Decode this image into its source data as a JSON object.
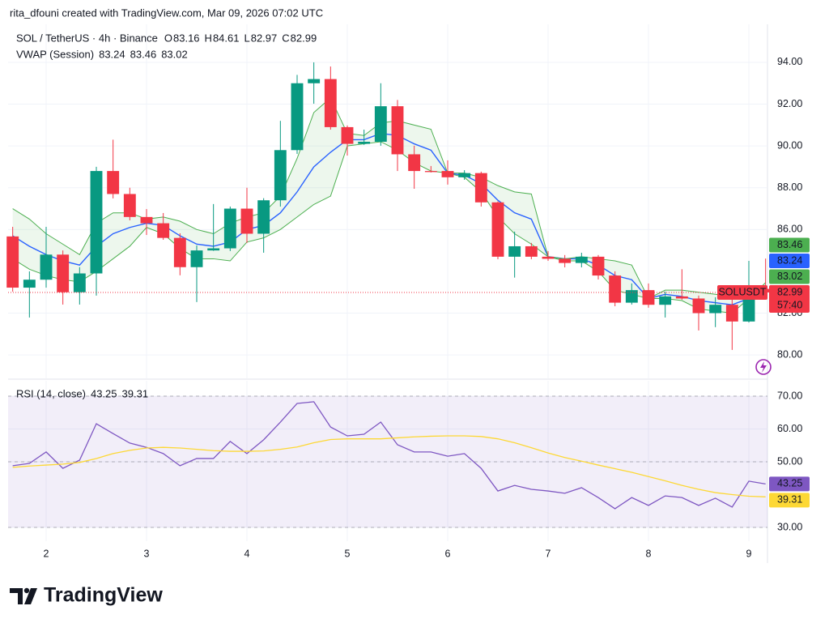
{
  "header": {
    "credit": "rita_dfouni created with TradingView.com, Mar 09, 2026 07:02 UTC"
  },
  "footer": {
    "brand": "TradingView"
  },
  "chart_data": [
    {
      "type": "candlestick",
      "title": "SOL / TetherUS · 4h · Binance",
      "ohlc_labels": [
        "O",
        "H",
        "L",
        "C"
      ],
      "up_color": "#089981",
      "down_color": "#f23645",
      "open": [
        85.67,
        83.22,
        83.6,
        84.8,
        83.0,
        83.9,
        88.8,
        87.7,
        86.6,
        86.3,
        85.6,
        84.2,
        85.0,
        85.1,
        87.0,
        85.8,
        87.4,
        89.8,
        93.0,
        93.2,
        90.9,
        90.1,
        90.2,
        91.9,
        89.6,
        88.8,
        88.8,
        88.5,
        88.7,
        87.3,
        84.7,
        85.2,
        84.7,
        84.6,
        84.4,
        84.7,
        83.8,
        82.5,
        83.1,
        82.4,
        82.8,
        82.7,
        82.0,
        82.4,
        81.6,
        83.16
      ],
      "high": [
        86.13,
        84.0,
        86.13,
        85.0,
        84.2,
        89.0,
        90.3,
        88.0,
        86.98,
        86.79,
        85.82,
        85.24,
        87.22,
        87.1,
        88.0,
        87.5,
        91.2,
        93.4,
        94.0,
        93.8,
        90.98,
        90.78,
        93.0,
        92.2,
        90.01,
        89.04,
        89.31,
        88.84,
        88.77,
        87.35,
        85.9,
        85.36,
        84.97,
        84.78,
        84.89,
        84.78,
        84.0,
        83.42,
        83.42,
        83.03,
        84.1,
        82.84,
        82.76,
        82.76,
        84.5,
        84.61
      ],
      "low": [
        83.03,
        81.79,
        83.22,
        82.41,
        82.41,
        82.84,
        87.49,
        86.44,
        85.74,
        85.51,
        83.81,
        82.53,
        84.98,
        84.97,
        85.36,
        84.89,
        87.1,
        89.62,
        92.02,
        90.78,
        89.54,
        90.05,
        90.01,
        88.8,
        87.95,
        88.73,
        88.15,
        88.38,
        87.1,
        84.58,
        83.7,
        84.58,
        84.5,
        84.19,
        84.19,
        83.61,
        82.33,
        82.41,
        82.26,
        81.79,
        82.64,
        81.17,
        81.33,
        80.24,
        81.55,
        82.97
      ],
      "close": [
        83.22,
        83.6,
        84.8,
        83.0,
        83.9,
        88.8,
        87.7,
        86.6,
        86.3,
        85.6,
        84.2,
        85.0,
        85.1,
        87.0,
        85.8,
        87.4,
        89.8,
        93.0,
        93.2,
        90.9,
        90.1,
        90.2,
        91.9,
        89.6,
        88.8,
        88.75,
        88.5,
        88.7,
        87.3,
        84.7,
        85.2,
        84.7,
        84.6,
        84.4,
        84.7,
        83.8,
        82.5,
        83.1,
        82.4,
        82.8,
        82.7,
        82.0,
        82.4,
        81.6,
        82.7,
        82.99
      ],
      "indicator": {
        "title": "VWAP (Session)",
        "fill": "rgba(76,175,80,0.10)",
        "lines": [
          {
            "color": "#2962ff",
            "values": [
              85.7,
              85.2,
              84.8,
              84.5,
              84.3,
              85.2,
              85.8,
              86.1,
              86.3,
              86.2,
              85.7,
              85.3,
              85.2,
              85.4,
              86.0,
              86.2,
              86.8,
              87.8,
              89.0,
              89.7,
              90.3,
              90.3,
              90.6,
              90.5,
              90.1,
              89.8,
              88.7,
              88.6,
              88.2,
              87.4,
              86.8,
              86.5,
              84.7,
              84.6,
              84.6,
              84.3,
              83.8,
              83.6,
              82.7,
              82.9,
              82.8,
              82.6,
              82.5,
              82.4,
              82.7,
              83.24
            ]
          },
          {
            "color": "#4caf50",
            "values": [
              87.0,
              86.5,
              85.8,
              85.3,
              84.8,
              86.3,
              86.8,
              86.8,
              86.5,
              86.6,
              86.4,
              86.0,
              85.8,
              86.3,
              86.6,
              86.8,
              87.6,
              89.4,
              91.6,
              92.3,
              90.6,
              90.5,
              91.1,
              91.2,
              91.0,
              90.8,
              88.7,
              88.7,
              88.5,
              88.1,
              87.8,
              87.7,
              84.7,
              84.6,
              84.7,
              84.6,
              84.5,
              84.3,
              82.7,
              83.1,
              83.1,
              83.0,
              82.9,
              82.8,
              82.7,
              83.46
            ]
          },
          {
            "color": "#4caf50",
            "values": [
              84.6,
              84.1,
              83.8,
              83.6,
              83.5,
              84.0,
              84.6,
              85.2,
              86.1,
              85.8,
              85.1,
              84.6,
              84.6,
              84.5,
              85.4,
              85.6,
              86.0,
              86.6,
              87.2,
              87.6,
              90.0,
              90.1,
              90.2,
              89.8,
              89.2,
              88.8,
              88.7,
              88.5,
              87.8,
              86.6,
              85.8,
              85.3,
              84.7,
              84.5,
              84.5,
              84.0,
              83.1,
              82.9,
              82.7,
              82.7,
              82.6,
              82.2,
              82.1,
              82.0,
              82.7,
              83.02
            ]
          }
        ]
      },
      "symbol_label": "SOLUSDT",
      "countdown": "57:40",
      "ylim": [
        78.88,
        95.82
      ],
      "yticks": [
        {
          "value": 80,
          "label": "80.00"
        },
        {
          "value": 82,
          "label": "82.00"
        },
        {
          "value": 86,
          "label": "86.00"
        },
        {
          "value": 88,
          "label": "88.00"
        },
        {
          "value": 90,
          "label": "90.00"
        },
        {
          "value": 92,
          "label": "92.00"
        },
        {
          "value": 94,
          "label": "94.00"
        }
      ],
      "grid": true
    },
    {
      "type": "line",
      "title": "RSI (14, close)",
      "categories": [
        null,
        null,
        "2",
        null,
        null,
        null,
        null,
        null,
        "3",
        null,
        null,
        null,
        null,
        null,
        "4",
        null,
        null,
        null,
        null,
        null,
        "5",
        null,
        null,
        null,
        null,
        null,
        "6",
        null,
        null,
        null,
        null,
        null,
        "7",
        null,
        null,
        null,
        null,
        null,
        "8",
        null,
        null,
        null,
        null,
        null,
        "9",
        null
      ],
      "series": [
        {
          "color": "#7e57c2",
          "values": [
            48.8,
            49.5,
            53,
            48,
            50.5,
            61.6,
            58.6,
            55.7,
            54.4,
            52.5,
            48.8,
            51,
            51,
            56.2,
            52.5,
            56.7,
            62.1,
            67.8,
            68.3,
            60.6,
            57.9,
            58.4,
            62.1,
            55.2,
            53,
            53,
            51.7,
            52.5,
            48,
            41.1,
            42.8,
            41.6,
            41.1,
            40.4,
            42.1,
            39.1,
            35.7,
            39.1,
            36.7,
            39.6,
            39.1,
            36.7,
            38.9,
            36.2,
            44.1,
            43.25
          ]
        },
        {
          "color": "#fdd835",
          "values": [
            48.3,
            48.7,
            49.0,
            49.3,
            49.8,
            51.0,
            52.5,
            53.5,
            54.2,
            54.4,
            54.2,
            53.8,
            53.4,
            53.2,
            53.2,
            53.3,
            53.8,
            54.5,
            55.8,
            56.8,
            57.0,
            57.0,
            57.0,
            57.3,
            57.6,
            57.8,
            57.9,
            57.9,
            57.7,
            57.0,
            55.8,
            54.3,
            52.7,
            51.3,
            50.2,
            49.0,
            47.9,
            46.8,
            45.5,
            44.2,
            42.8,
            41.6,
            40.6,
            40.0,
            39.5,
            39.31
          ]
        }
      ],
      "levels": [
        70,
        50,
        30
      ],
      "band_fill": "rgba(126,87,194,0.10)",
      "ylim": [
        25.8,
        74.7
      ],
      "yticks": [
        {
          "value": 30,
          "label": "30.00"
        },
        {
          "value": 50,
          "label": "50.00"
        },
        {
          "value": 60,
          "label": "60.00"
        },
        {
          "value": 70,
          "label": "70.00"
        }
      ],
      "grid": true
    }
  ]
}
